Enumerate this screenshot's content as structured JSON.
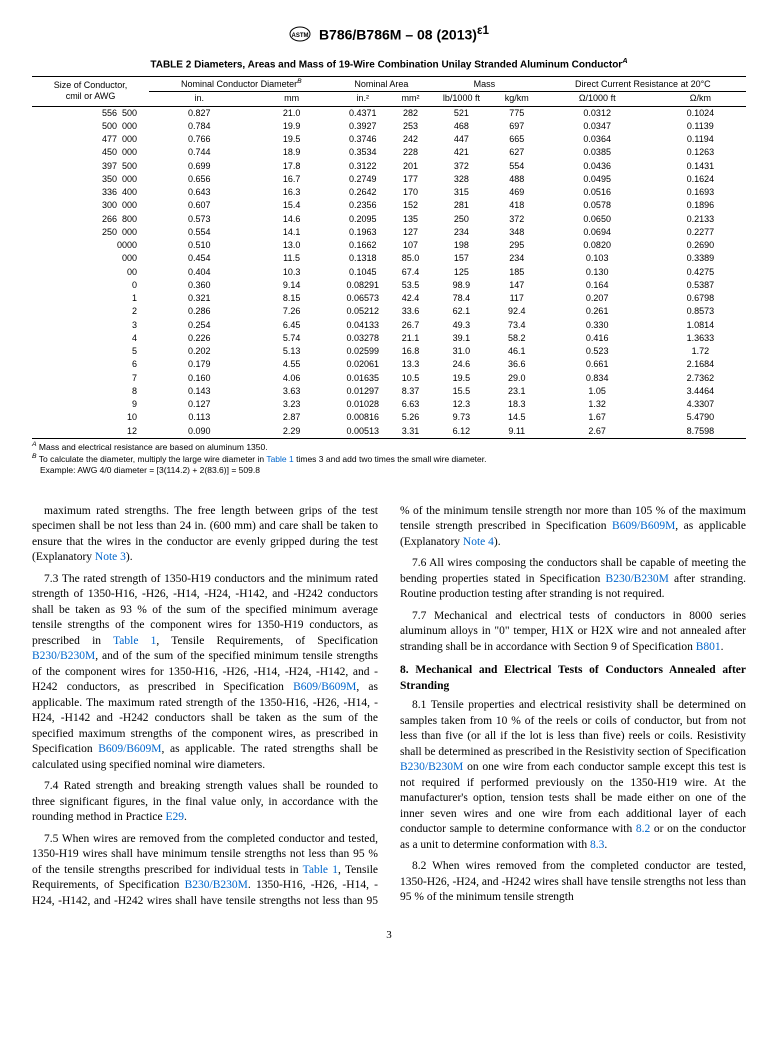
{
  "doc_header": "B786/B786M – 08 (2013)",
  "doc_header_sup": "ε1",
  "table_title": "TABLE 2 Diameters, Areas and Mass of 19-Wire Combination Unilay Stranded Aluminum Conductor",
  "table_title_sup": "A",
  "headers": {
    "size": "Size of Conductor,",
    "size_sub": "cmil or AWG",
    "diameter": "Nominal Conductor Diameter",
    "diameter_sup": "B",
    "area": "Nominal Area",
    "mass": "Mass",
    "resistance": "Direct Current Resistance at 20°C",
    "in": "in.",
    "mm": "mm",
    "in2": "in.²",
    "mm2": "mm²",
    "lb1000": "lb/1000 ft",
    "kgkm": "kg/km",
    "ohm1000": "Ω/1000 ft",
    "ohmkm": "Ω/km"
  },
  "rows": [
    {
      "size": "556  500",
      "in": "0.827",
      "mm": "21.0",
      "in2": "0.4371",
      "mm2": "282",
      "lb": "521",
      "kg": "775",
      "o1": "0.0312",
      "o2": "0.1024"
    },
    {
      "size": "500  000",
      "in": "0.784",
      "mm": "19.9",
      "in2": "0.3927",
      "mm2": "253",
      "lb": "468",
      "kg": "697",
      "o1": "0.0347",
      "o2": "0.1139"
    },
    {
      "size": "477  000",
      "in": "0.766",
      "mm": "19.5",
      "in2": "0.3746",
      "mm2": "242",
      "lb": "447",
      "kg": "665",
      "o1": "0.0364",
      "o2": "0.1194"
    },
    {
      "size": "450  000",
      "in": "0.744",
      "mm": "18.9",
      "in2": "0.3534",
      "mm2": "228",
      "lb": "421",
      "kg": "627",
      "o1": "0.0385",
      "o2": "0.1263"
    },
    {
      "size": "397  500",
      "in": "0.699",
      "mm": "17.8",
      "in2": "0.3122",
      "mm2": "201",
      "lb": "372",
      "kg": "554",
      "o1": "0.0436",
      "o2": "0.1431"
    },
    {
      "size": "350  000",
      "in": "0.656",
      "mm": "16.7",
      "in2": "0.2749",
      "mm2": "177",
      "lb": "328",
      "kg": "488",
      "o1": "0.0495",
      "o2": "0.1624"
    },
    {
      "size": "336  400",
      "in": "0.643",
      "mm": "16.3",
      "in2": "0.2642",
      "mm2": "170",
      "lb": "315",
      "kg": "469",
      "o1": "0.0516",
      "o2": "0.1693"
    },
    {
      "size": "300  000",
      "in": "0.607",
      "mm": "15.4",
      "in2": "0.2356",
      "mm2": "152",
      "lb": "281",
      "kg": "418",
      "o1": "0.0578",
      "o2": "0.1896"
    },
    {
      "size": "266  800",
      "in": "0.573",
      "mm": "14.6",
      "in2": "0.2095",
      "mm2": "135",
      "lb": "250",
      "kg": "372",
      "o1": "0.0650",
      "o2": "0.2133"
    },
    {
      "size": "250  000",
      "in": "0.554",
      "mm": "14.1",
      "in2": "0.1963",
      "mm2": "127",
      "lb": "234",
      "kg": "348",
      "o1": "0.0694",
      "o2": "0.2277"
    },
    {
      "size": "0000",
      "in": "0.510",
      "mm": "13.0",
      "in2": "0.1662",
      "mm2": "107",
      "lb": "198",
      "kg": "295",
      "o1": "0.0820",
      "o2": "0.2690"
    },
    {
      "size": "000",
      "in": "0.454",
      "mm": "11.5",
      "in2": "0.1318",
      "mm2": "85.0",
      "lb": "157",
      "kg": "234",
      "o1": "0.103",
      "o2": "0.3389"
    },
    {
      "size": "00",
      "in": "0.404",
      "mm": "10.3",
      "in2": "0.1045",
      "mm2": "67.4",
      "lb": "125",
      "kg": "185",
      "o1": "0.130",
      "o2": "0.4275"
    },
    {
      "size": "0",
      "in": "0.360",
      "mm": "9.14",
      "in2": "0.08291",
      "mm2": "53.5",
      "lb": "98.9",
      "kg": "147",
      "o1": "0.164",
      "o2": "0.5387"
    },
    {
      "size": "1",
      "in": "0.321",
      "mm": "8.15",
      "in2": "0.06573",
      "mm2": "42.4",
      "lb": "78.4",
      "kg": "117",
      "o1": "0.207",
      "o2": "0.6798"
    },
    {
      "size": "2",
      "in": "0.286",
      "mm": "7.26",
      "in2": "0.05212",
      "mm2": "33.6",
      "lb": "62.1",
      "kg": "92.4",
      "o1": "0.261",
      "o2": "0.8573"
    },
    {
      "size": "3",
      "in": "0.254",
      "mm": "6.45",
      "in2": "0.04133",
      "mm2": "26.7",
      "lb": "49.3",
      "kg": "73.4",
      "o1": "0.330",
      "o2": "1.0814"
    },
    {
      "size": "4",
      "in": "0.226",
      "mm": "5.74",
      "in2": "0.03278",
      "mm2": "21.1",
      "lb": "39.1",
      "kg": "58.2",
      "o1": "0.416",
      "o2": "1.3633"
    },
    {
      "size": "5",
      "in": "0.202",
      "mm": "5.13",
      "in2": "0.02599",
      "mm2": "16.8",
      "lb": "31.0",
      "kg": "46.1",
      "o1": "0.523",
      "o2": "1.72"
    },
    {
      "size": "6",
      "in": "0.179",
      "mm": "4.55",
      "in2": "0.02061",
      "mm2": "13.3",
      "lb": "24.6",
      "kg": "36.6",
      "o1": "0.661",
      "o2": "2.1684"
    },
    {
      "size": "7",
      "in": "0.160",
      "mm": "4.06",
      "in2": "0.01635",
      "mm2": "10.5",
      "lb": "19.5",
      "kg": "29.0",
      "o1": "0.834",
      "o2": "2.7362"
    },
    {
      "size": "8",
      "in": "0.143",
      "mm": "3.63",
      "in2": "0.01297",
      "mm2": "8.37",
      "lb": "15.5",
      "kg": "23.1",
      "o1": "1.05",
      "o2": "3.4464"
    },
    {
      "size": "9",
      "in": "0.127",
      "mm": "3.23",
      "in2": "0.01028",
      "mm2": "6.63",
      "lb": "12.3",
      "kg": "18.3",
      "o1": "1.32",
      "o2": "4.3307"
    },
    {
      "size": "10",
      "in": "0.113",
      "mm": "2.87",
      "in2": "0.00816",
      "mm2": "5.26",
      "lb": "9.73",
      "kg": "14.5",
      "o1": "1.67",
      "o2": "5.4790"
    },
    {
      "size": "12",
      "in": "0.090",
      "mm": "2.29",
      "in2": "0.00513",
      "mm2": "3.31",
      "lb": "6.12",
      "kg": "9.11",
      "o1": "2.67",
      "o2": "8.7598"
    }
  ],
  "footnote_a": " Mass and electrical resistance are based on aluminum 1350.",
  "footnote_b_pre": " To calculate the diameter, multiply the large wire diameter in ",
  "footnote_b_link": "Table 1",
  "footnote_b_post": " times 3 and add two times the small wire diameter.",
  "footnote_example": "Example: AWG 4/0 diameter = [3(114.2) + 2(83.6)] = 509.8",
  "page_number": "3",
  "colors": {
    "link": "#0066cc",
    "text": "#000000",
    "border": "#000000",
    "bg": "#ffffff"
  }
}
